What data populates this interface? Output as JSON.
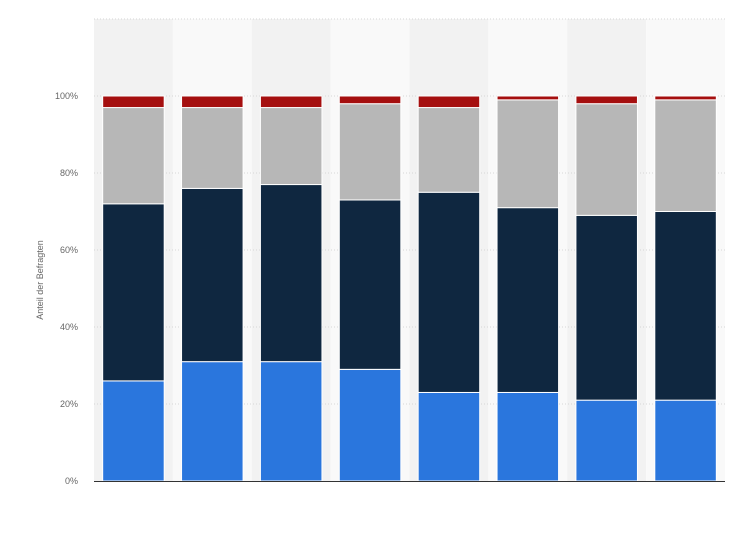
{
  "chart_data": {
    "type": "bar",
    "stacked": true,
    "categories": [
      "",
      "",
      "",
      "",
      "",
      "",
      "",
      ""
    ],
    "series": [
      {
        "color": "#2a76dd",
        "values": [
          26,
          31,
          31,
          29,
          23,
          23,
          21,
          21
        ]
      },
      {
        "color": "#0f2740",
        "values": [
          46,
          45,
          46,
          44,
          52,
          48,
          48,
          49
        ]
      },
      {
        "color": "#b7b7b7",
        "values": [
          25,
          21,
          20,
          25,
          22,
          28,
          29,
          29
        ]
      },
      {
        "color": "#a50f0f",
        "values": [
          3,
          3,
          3,
          2,
          3,
          1,
          2,
          1
        ]
      }
    ],
    "ylabel": "Anteil der Befragten",
    "ylim": [
      0,
      120
    ],
    "yticks": [
      0,
      20,
      40,
      60,
      80,
      100
    ],
    "ytick_labels": [
      "0%",
      "20%",
      "40%",
      "60%",
      "80%",
      "100%"
    ],
    "grid": true,
    "alternating_column_background": true
  }
}
